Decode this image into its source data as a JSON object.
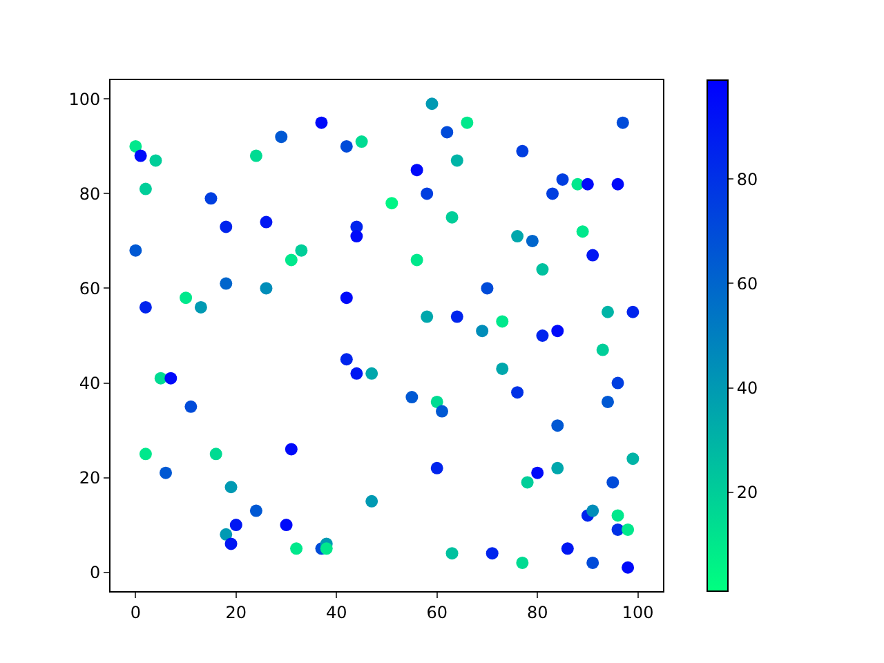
{
  "chart_data": {
    "type": "scatter",
    "x": [
      0,
      1,
      4,
      2,
      0,
      2,
      15,
      18,
      24,
      29,
      26,
      37,
      42,
      45,
      44,
      44,
      31,
      33,
      10,
      13,
      18,
      26,
      42,
      51,
      59,
      66,
      62,
      77,
      64,
      56,
      58,
      85,
      88,
      90,
      96,
      83,
      97,
      63,
      76,
      79,
      89,
      91,
      56,
      81,
      70,
      58,
      64,
      69,
      73,
      81,
      84,
      94,
      99,
      5,
      7,
      11,
      2,
      6,
      16,
      19,
      24,
      20,
      18,
      19,
      30,
      31,
      32,
      37,
      38,
      38,
      42,
      44,
      47,
      47,
      93,
      73,
      96,
      76,
      55,
      60,
      61,
      94,
      84,
      99,
      60,
      80,
      84,
      78,
      95,
      90,
      91,
      96,
      96,
      98,
      63,
      71,
      77,
      86,
      91,
      98
    ],
    "values": [
      90,
      88,
      87,
      81,
      68,
      56,
      79,
      73,
      88,
      92,
      74,
      95,
      90,
      91,
      73,
      71,
      66,
      68,
      58,
      56,
      61,
      60,
      58,
      78,
      99,
      95,
      93,
      89,
      87,
      85,
      80,
      83,
      82,
      82,
      82,
      80,
      95,
      75,
      71,
      70,
      72,
      67,
      66,
      64,
      60,
      54,
      54,
      51,
      53,
      50,
      51,
      55,
      55,
      41,
      41,
      35,
      25,
      21,
      25,
      18,
      13,
      10,
      8,
      6,
      10,
      26,
      5,
      5,
      6,
      5,
      45,
      42,
      42,
      15,
      47,
      43,
      40,
      38,
      37,
      36,
      34,
      36,
      31,
      24,
      22,
      21,
      22,
      19,
      19,
      12,
      13,
      12,
      9,
      9,
      4,
      4,
      2,
      5,
      2,
      1
    ],
    "cvalues": [
      10,
      95,
      20,
      20,
      65,
      85,
      75,
      85,
      15,
      65,
      90,
      95,
      70,
      15,
      85,
      95,
      10,
      20,
      10,
      40,
      60,
      45,
      95,
      5,
      40,
      10,
      70,
      75,
      30,
      95,
      75,
      75,
      10,
      95,
      95,
      75,
      70,
      20,
      35,
      60,
      10,
      90,
      10,
      25,
      70,
      35,
      85,
      45,
      10,
      85,
      95,
      30,
      85,
      15,
      95,
      70,
      10,
      65,
      15,
      40,
      65,
      90,
      40,
      90,
      95,
      95,
      10,
      70,
      40,
      10,
      85,
      90,
      35,
      40,
      20,
      35,
      75,
      80,
      65,
      15,
      65,
      65,
      65,
      30,
      85,
      95,
      35,
      20,
      70,
      85,
      45,
      10,
      80,
      10,
      25,
      85,
      15,
      90,
      70,
      95
    ],
    "xlim": [
      -5,
      105
    ],
    "ylim": [
      -4,
      104
    ],
    "xticks": [
      0,
      20,
      40,
      60,
      80,
      100
    ],
    "yticks": [
      0,
      20,
      40,
      60,
      80,
      100
    ],
    "clim": [
      1,
      99
    ],
    "cticks": [
      20,
      40,
      60,
      80
    ],
    "marker": "circle"
  }
}
